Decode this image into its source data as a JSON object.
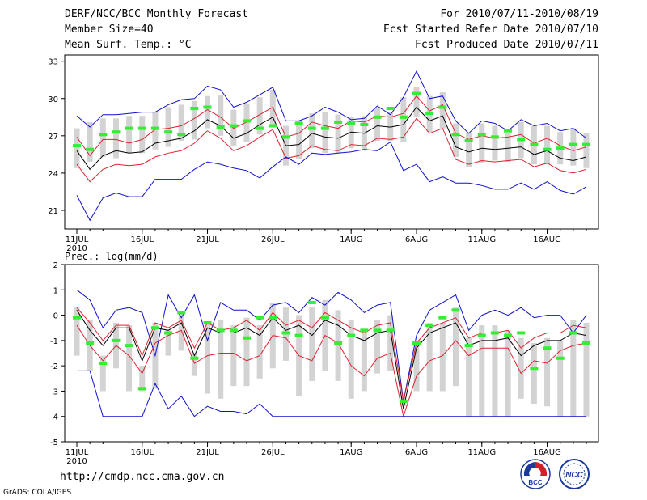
{
  "header": {
    "title": "DERF/NCC/BCC Monthly Forecast",
    "member_size": "Member Size=40",
    "variable": "Mean Surf. Temp.: °C",
    "period": "For 2010/07/11-2010/08/19",
    "fcst_started": "Fcst Started Refer Date 2010/07/10",
    "fcst_produced": "Fcst Produced Date 2010/07/11"
  },
  "footer": {
    "url": "http://cmdp.ncc.cma.gov.cn",
    "credit": "GrADS: COLA/IGES",
    "logo_bcc_text": "BCC",
    "logo_ncc_text": "NCC"
  },
  "colors": {
    "ensemble_mean": "#000000",
    "spread_band": "#e02030",
    "extremes": "#1010d0",
    "member_box": "#d3d3d3",
    "median": "#33ee33"
  },
  "chart_data": [
    {
      "type": "line",
      "title": "Mean Surf. Temp.: °C",
      "xlabel": "",
      "ylabel": "°C",
      "ylim": [
        19.5,
        33.5
      ],
      "yticks": [
        21,
        24,
        27,
        30,
        33
      ],
      "xtick_labels": [
        "11JUL",
        "16JUL",
        "21JUL",
        "26JUL",
        "1AUG",
        "6AUG",
        "11AUG",
        "16AUG"
      ],
      "xtick_days": [
        1,
        6,
        11,
        16,
        22,
        27,
        32,
        37
      ],
      "year_label": "2010",
      "days": 40,
      "series": [
        {
          "name": "Maximum",
          "color": "#1010d0",
          "values": [
            28.6,
            27.7,
            28.7,
            28.7,
            28.8,
            28.9,
            28.9,
            29.5,
            29.9,
            30.0,
            31.0,
            30.7,
            29.3,
            29.7,
            30.3,
            30.9,
            28.2,
            28.2,
            28.6,
            29.3,
            28.9,
            28.3,
            28.4,
            29.4,
            28.7,
            30.1,
            32.2,
            30.0,
            30.2,
            28.2,
            27.2,
            28.2,
            28.0,
            27.4,
            28.3,
            27.8,
            28.0,
            27.4,
            27.6,
            26.8
          ]
        },
        {
          "name": "Mean + Spread",
          "color": "#e02030",
          "values": [
            26.9,
            25.4,
            26.7,
            26.7,
            26.4,
            26.7,
            27.5,
            27.6,
            27.8,
            28.4,
            29.1,
            28.5,
            27.6,
            28.1,
            28.7,
            29.3,
            26.9,
            27.2,
            28.1,
            27.8,
            27.6,
            28.2,
            28.1,
            28.6,
            28.5,
            28.8,
            30.2,
            29.0,
            29.5,
            27.2,
            26.7,
            27.0,
            26.8,
            26.9,
            27.1,
            26.4,
            26.8,
            26.2,
            25.8,
            26.1
          ]
        },
        {
          "name": "Ensemble Mean",
          "color": "#000000",
          "values": [
            25.8,
            24.3,
            25.4,
            25.8,
            25.6,
            25.7,
            26.4,
            26.6,
            26.8,
            27.4,
            28.3,
            27.8,
            26.8,
            27.2,
            27.9,
            28.5,
            26.2,
            26.3,
            27.2,
            26.9,
            26.8,
            27.3,
            27.2,
            27.8,
            27.7,
            27.9,
            29.3,
            28.2,
            28.6,
            26.1,
            25.7,
            26.0,
            25.9,
            26.0,
            26.1,
            25.5,
            25.8,
            25.2,
            25.0,
            25.3
          ]
        },
        {
          "name": "Mean - Spread",
          "color": "#e02030",
          "values": [
            24.7,
            23.3,
            24.3,
            24.7,
            24.6,
            24.7,
            25.3,
            25.6,
            25.8,
            26.4,
            27.4,
            26.8,
            25.8,
            26.2,
            26.9,
            27.5,
            25.2,
            25.4,
            26.2,
            25.9,
            25.8,
            26.3,
            26.2,
            26.8,
            26.7,
            26.9,
            28.4,
            27.2,
            27.6,
            25.1,
            24.7,
            25.0,
            24.9,
            25.0,
            25.1,
            24.5,
            24.8,
            24.2,
            24.0,
            24.3
          ]
        },
        {
          "name": "Minimum",
          "color": "#1010d0",
          "values": [
            22.2,
            20.2,
            22.0,
            22.4,
            22.1,
            22.1,
            23.5,
            23.5,
            23.5,
            24.3,
            24.9,
            24.7,
            24.4,
            24.2,
            23.6,
            24.5,
            25.3,
            24.7,
            25.6,
            25.5,
            25.6,
            25.7,
            25.9,
            25.8,
            26.5,
            24.2,
            24.7,
            23.3,
            23.7,
            23.2,
            23.2,
            23.0,
            22.7,
            22.7,
            23.2,
            22.7,
            23.3,
            22.6,
            22.3,
            22.9
          ]
        }
      ],
      "boxes": {
        "color": "#d3d3d3",
        "low": [
          24.4,
          24.9,
          25.3,
          25.2,
          25.6,
          25.6,
          25.9,
          26.1,
          26.6,
          26.7,
          27.6,
          27.0,
          26.2,
          26.5,
          27.1,
          27.9,
          24.6,
          25.1,
          26.0,
          25.6,
          25.6,
          26.0,
          25.8,
          26.6,
          26.6,
          26.5,
          28.5,
          27.3,
          27.6,
          25.3,
          24.5,
          24.8,
          25.0,
          24.9,
          25.2,
          24.7,
          24.7,
          24.7,
          24.6,
          24.4
        ],
        "high": [
          27.6,
          28.1,
          28.4,
          28.4,
          28.6,
          28.6,
          28.9,
          29.3,
          29.5,
          29.8,
          30.2,
          30.3,
          29.1,
          29.6,
          30.1,
          30.7,
          27.8,
          28.2,
          28.8,
          28.9,
          28.7,
          28.5,
          28.6,
          29.2,
          28.9,
          30.1,
          30.9,
          30.2,
          30.5,
          28.0,
          27.2,
          28.0,
          27.8,
          27.2,
          28.1,
          27.8,
          27.8,
          27.3,
          27.6,
          27.2
        ]
      },
      "median": {
        "color": "#33ee33",
        "values": [
          26.2,
          25.9,
          27.1,
          27.3,
          27.6,
          27.6,
          27.6,
          27.3,
          27.1,
          29.2,
          29.3,
          27.7,
          27.8,
          28.2,
          27.6,
          27.8,
          26.9,
          28.0,
          27.6,
          27.6,
          28.1,
          28.0,
          27.9,
          28.5,
          29.2,
          28.5,
          30.4,
          28.8,
          29.3,
          27.1,
          26.6,
          27.1,
          26.9,
          27.4,
          26.7,
          26.3,
          25.9,
          26.0,
          26.3,
          26.3
        ]
      }
    },
    {
      "type": "line",
      "title": "Prec.: log(mm/d)",
      "xlabel": "",
      "ylabel": "log(mm/d)",
      "ylim": [
        -5,
        2
      ],
      "yticks": [
        -5,
        -4,
        -3,
        -2,
        -1,
        0,
        1,
        2
      ],
      "xtick_labels": [
        "11JUL",
        "16JUL",
        "21JUL",
        "26JUL",
        "1AUG",
        "6AUG",
        "11AUG",
        "16AUG"
      ],
      "xtick_days": [
        1,
        6,
        11,
        16,
        22,
        27,
        32,
        37
      ],
      "year_label": "2010",
      "days": 40,
      "series": [
        {
          "name": "Maximum",
          "color": "#1010d0",
          "values": [
            1.0,
            0.6,
            -0.5,
            0.2,
            0.3,
            0.1,
            -1.6,
            0.8,
            -0.1,
            0.8,
            -1.0,
            0.5,
            0.2,
            0.2,
            -0.2,
            0.4,
            0.5,
            0.1,
            0.7,
            0.4,
            0.9,
            0.6,
            0.1,
            0.4,
            0.5,
            -3.4,
            -0.8,
            0.2,
            0.5,
            0.8,
            -0.6,
            0.0,
            0.2,
            0.0,
            0.3,
            -0.1,
            0.0,
            0.0,
            -0.7,
            0.0
          ]
        },
        {
          "name": "Mean + Spread",
          "color": "#e02030",
          "values": [
            0.3,
            -0.3,
            -1.0,
            -0.4,
            -0.4,
            -1.6,
            -0.3,
            -0.5,
            -0.2,
            -1.3,
            -0.3,
            -0.6,
            -0.5,
            -0.2,
            -0.6,
            0.1,
            -0.4,
            -0.2,
            -0.5,
            0.1,
            -0.2,
            -0.5,
            -0.7,
            -0.4,
            -0.3,
            -3.4,
            -1.1,
            -0.5,
            -0.3,
            -0.1,
            -0.9,
            -0.7,
            -0.7,
            -0.6,
            -1.3,
            -0.9,
            -0.7,
            -0.7,
            -0.4,
            -0.5
          ]
        },
        {
          "name": "Ensemble Mean",
          "color": "#000000",
          "values": [
            0.2,
            -0.6,
            -1.2,
            -0.5,
            -0.5,
            -1.8,
            -0.5,
            -0.6,
            -0.3,
            -1.6,
            -0.5,
            -0.7,
            -0.7,
            -0.5,
            -0.8,
            -0.1,
            -0.6,
            -0.4,
            -0.8,
            -0.2,
            -0.4,
            -0.8,
            -1.0,
            -0.7,
            -0.6,
            -3.7,
            -1.3,
            -0.7,
            -0.5,
            -0.3,
            -1.2,
            -1.0,
            -1.0,
            -0.9,
            -1.6,
            -1.2,
            -1.0,
            -1.0,
            -0.7,
            -0.8
          ]
        },
        {
          "name": "Mean - Spread",
          "color": "#e02030",
          "values": [
            -0.4,
            -1.2,
            -1.8,
            -1.2,
            -1.6,
            -2.3,
            -1.1,
            -0.8,
            -0.6,
            -1.9,
            -1.6,
            -1.5,
            -1.5,
            -1.8,
            -1.6,
            -0.8,
            -0.9,
            -1.6,
            -1.8,
            -0.8,
            -1.1,
            -2.0,
            -2.4,
            -1.7,
            -1.5,
            -4.0,
            -2.4,
            -1.8,
            -1.6,
            -1.0,
            -1.6,
            -1.3,
            -1.3,
            -1.3,
            -2.3,
            -1.8,
            -1.9,
            -1.4,
            -1.2,
            -1.1
          ]
        },
        {
          "name": "Minimum",
          "color": "#1010d0",
          "values": [
            -2.2,
            -2.2,
            -4.0,
            -4.0,
            -4.0,
            -4.0,
            -2.7,
            -3.7,
            -3.2,
            -4.0,
            -3.6,
            -3.8,
            -3.8,
            -3.9,
            -3.5,
            -4.0,
            -4.0,
            -4.0,
            -4.0,
            -4.0,
            -4.0,
            -4.0,
            -4.0,
            -4.0,
            -4.0,
            -4.0,
            -4.0,
            -4.0,
            -4.0,
            -4.0,
            -4.0,
            -4.0,
            -4.0,
            -4.0,
            -4.0,
            -4.0,
            -4.0,
            -4.0,
            -4.0,
            -4.0
          ]
        }
      ],
      "boxes": {
        "color": "#d3d3d3",
        "low": [
          -1.6,
          -2.2,
          -3.0,
          -2.1,
          -3.0,
          -3.0,
          -2.9,
          -1.6,
          -1.4,
          -2.4,
          -3.1,
          -3.3,
          -2.8,
          -2.8,
          -2.5,
          -2.1,
          -1.8,
          -3.2,
          -2.6,
          -2.2,
          -2.6,
          -3.3,
          -3.0,
          -2.3,
          -2.2,
          -3.6,
          -3.0,
          -3.0,
          -3.0,
          -2.8,
          -4.0,
          -4.0,
          -4.0,
          -4.0,
          -3.3,
          -3.5,
          -3.6,
          -4.0,
          -4.0,
          -4.0
        ],
        "high": [
          0.3,
          -0.2,
          -1.6,
          -0.3,
          -0.4,
          -2.0,
          -0.3,
          -0.6,
          0.1,
          -1.5,
          -0.3,
          -0.2,
          -0.4,
          -0.1,
          -0.4,
          0.5,
          0.3,
          0.0,
          0.3,
          0.6,
          0.2,
          -0.2,
          -0.7,
          -0.2,
          0.0,
          -3.2,
          -1.1,
          -0.3,
          -0.3,
          0.3,
          -0.9,
          -0.4,
          -0.4,
          -0.6,
          -0.9,
          -1.1,
          -0.9,
          -1.0,
          -0.2,
          -0.3
        ]
      },
      "median": {
        "color": "#33ee33",
        "values": [
          -0.1,
          -1.1,
          -1.9,
          -1.0,
          -1.2,
          -2.9,
          -0.5,
          -0.7,
          0.1,
          -1.7,
          -0.3,
          -0.6,
          -0.6,
          -0.9,
          -0.1,
          -0.1,
          -0.7,
          -0.8,
          0.5,
          -0.1,
          -1.1,
          -0.8,
          -0.6,
          -0.6,
          -0.6,
          -3.4,
          -1.1,
          -0.4,
          -0.1,
          0.2,
          -1.2,
          -0.8,
          -0.7,
          -0.8,
          -0.7,
          -2.1,
          -1.3,
          -1.7,
          -0.7,
          -1.1
        ]
      }
    }
  ]
}
